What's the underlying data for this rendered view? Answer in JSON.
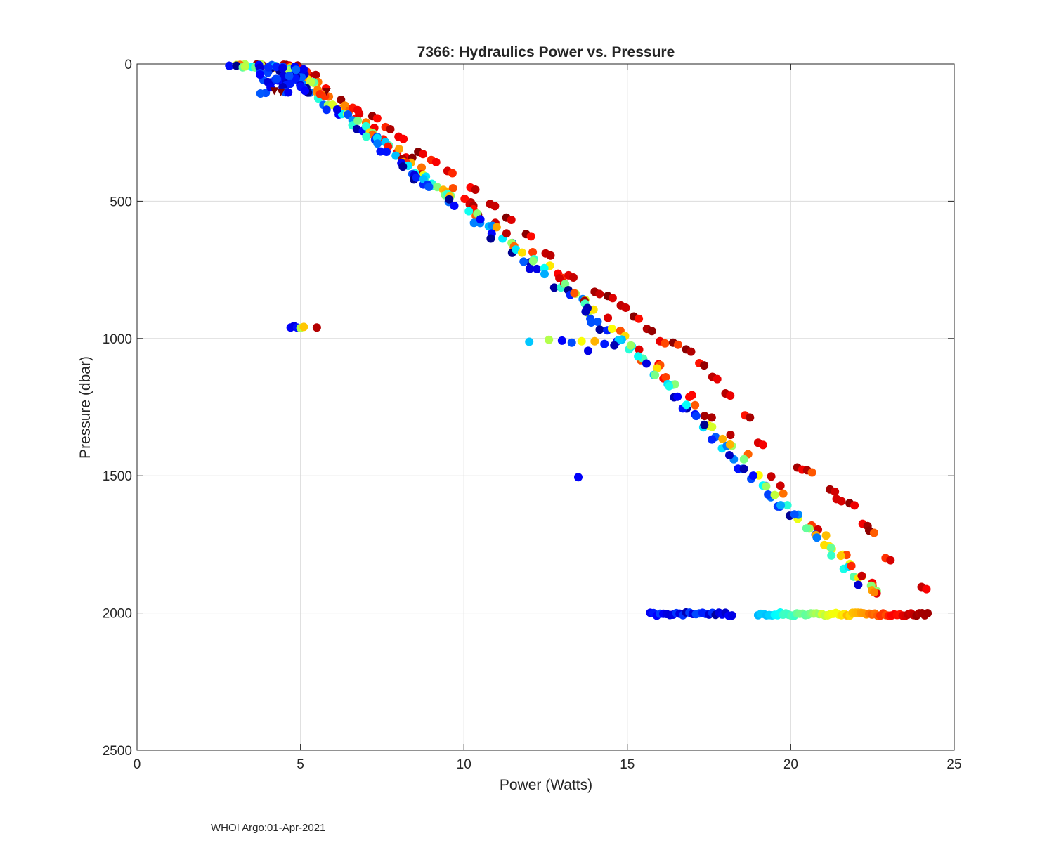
{
  "chart_data": {
    "type": "scatter",
    "title": "7366: Hydraulics Power vs. Pressure",
    "xlabel": "Power (Watts)",
    "ylabel": "Pressure (dbar)",
    "xlim": [
      0,
      25
    ],
    "ylim": [
      2500,
      0
    ],
    "y_reversed": true,
    "grid": true,
    "x_ticks": [
      "0",
      "5",
      "10",
      "15",
      "20",
      "25"
    ],
    "y_ticks": [
      "0",
      "500",
      "1000",
      "1500",
      "2000",
      "2500"
    ],
    "colormap": "jet (color encodes profile index: dark blue = early, dark red = late)",
    "credit": "WHOI Argo:01-Apr-2021",
    "main_trend": [
      [
        3.1,
        2
      ],
      [
        3.4,
        5
      ],
      [
        3.7,
        5
      ],
      [
        3.9,
        8
      ],
      [
        4.1,
        8
      ],
      [
        4.3,
        10
      ],
      [
        4.5,
        15
      ],
      [
        4.7,
        25
      ],
      [
        4.9,
        35
      ],
      [
        5.1,
        50
      ],
      [
        5.3,
        70
      ],
      [
        5.5,
        95
      ],
      [
        5.7,
        115
      ],
      [
        5.9,
        140
      ],
      [
        6.1,
        160
      ],
      [
        6.3,
        175
      ],
      [
        6.5,
        190
      ],
      [
        6.8,
        215
      ],
      [
        7.0,
        235
      ],
      [
        7.2,
        255
      ],
      [
        7.4,
        275
      ],
      [
        7.6,
        295
      ],
      [
        7.8,
        318
      ],
      [
        8.0,
        335
      ],
      [
        8.2,
        355
      ],
      [
        8.4,
        375
      ],
      [
        8.6,
        395
      ],
      [
        8.8,
        410
      ],
      [
        9.0,
        430
      ],
      [
        9.2,
        445
      ],
      [
        9.4,
        462
      ],
      [
        9.6,
        480
      ],
      [
        9.8,
        500
      ],
      [
        10.0,
        520
      ],
      [
        10.3,
        545
      ],
      [
        10.6,
        570
      ],
      [
        10.9,
        598
      ],
      [
        11.2,
        625
      ],
      [
        11.5,
        655
      ],
      [
        11.8,
        685
      ],
      [
        12.1,
        715
      ],
      [
        12.4,
        745
      ],
      [
        12.7,
        775
      ],
      [
        13.0,
        805
      ],
      [
        13.3,
        835
      ],
      [
        13.6,
        865
      ],
      [
        13.9,
        900
      ],
      [
        14.2,
        935
      ],
      [
        14.5,
        970
      ],
      [
        14.8,
        1000
      ],
      [
        15.1,
        1035
      ],
      [
        15.4,
        1070
      ],
      [
        15.7,
        1100
      ],
      [
        16.0,
        1135
      ],
      [
        16.3,
        1170
      ],
      [
        16.6,
        1210
      ],
      [
        16.9,
        1245
      ],
      [
        17.2,
        1280
      ],
      [
        17.5,
        1320
      ],
      [
        17.8,
        1360
      ],
      [
        18.1,
        1395
      ],
      [
        18.4,
        1430
      ],
      [
        18.7,
        1465
      ],
      [
        19.0,
        1500
      ],
      [
        19.3,
        1535
      ],
      [
        19.6,
        1575
      ],
      [
        19.9,
        1615
      ],
      [
        20.2,
        1650
      ],
      [
        20.5,
        1690
      ],
      [
        20.8,
        1725
      ],
      [
        21.1,
        1760
      ],
      [
        21.4,
        1795
      ],
      [
        21.7,
        1830
      ],
      [
        22.0,
        1865
      ],
      [
        22.3,
        1900
      ],
      [
        22.5,
        1925
      ]
    ],
    "upper_branch": [
      [
        5.6,
        110
      ],
      [
        6.6,
        160
      ],
      [
        7.2,
        190
      ],
      [
        7.6,
        230
      ],
      [
        8.0,
        265
      ],
      [
        8.6,
        320
      ],
      [
        9.0,
        350
      ],
      [
        9.5,
        390
      ],
      [
        10.2,
        450
      ],
      [
        10.8,
        510
      ],
      [
        11.3,
        560
      ],
      [
        11.9,
        620
      ],
      [
        12.5,
        690
      ],
      [
        13.2,
        770
      ],
      [
        14.0,
        830
      ],
      [
        14.4,
        845
      ],
      [
        14.8,
        880
      ],
      [
        15.2,
        920
      ],
      [
        15.6,
        965
      ],
      [
        16.0,
        1010
      ],
      [
        16.4,
        1015
      ],
      [
        16.8,
        1040
      ],
      [
        17.2,
        1090
      ],
      [
        17.6,
        1140
      ],
      [
        18.0,
        1200
      ],
      [
        18.6,
        1280
      ],
      [
        19.0,
        1380
      ],
      [
        20.2,
        1470
      ],
      [
        20.5,
        1480
      ],
      [
        21.2,
        1550
      ],
      [
        21.4,
        1585
      ],
      [
        21.8,
        1600
      ],
      [
        22.2,
        1675
      ],
      [
        22.4,
        1700
      ],
      [
        22.9,
        1800
      ],
      [
        24.0,
        1905
      ]
    ],
    "side_branch_1000dbar": [
      [
        12.0,
        1012
      ],
      [
        12.6,
        1005
      ],
      [
        13.0,
        1008
      ],
      [
        13.3,
        1015
      ],
      [
        13.6,
        1010
      ],
      [
        13.8,
        1045
      ],
      [
        14.0,
        1010
      ],
      [
        14.3,
        1020
      ],
      [
        14.6,
        1025
      ]
    ],
    "cluster_960dbar": [
      [
        4.7,
        960
      ],
      [
        4.8,
        955
      ],
      [
        4.9,
        960
      ],
      [
        5.0,
        962
      ],
      [
        5.1,
        958
      ],
      [
        5.5,
        960
      ]
    ],
    "outliers": [
      [
        13.5,
        1505
      ]
    ],
    "bottom_band_2000dbar": {
      "segment_a": [
        15.7,
        18.3
      ],
      "segment_b": [
        19.0,
        24.2
      ],
      "pressure_range": [
        1998,
        2010
      ]
    }
  }
}
